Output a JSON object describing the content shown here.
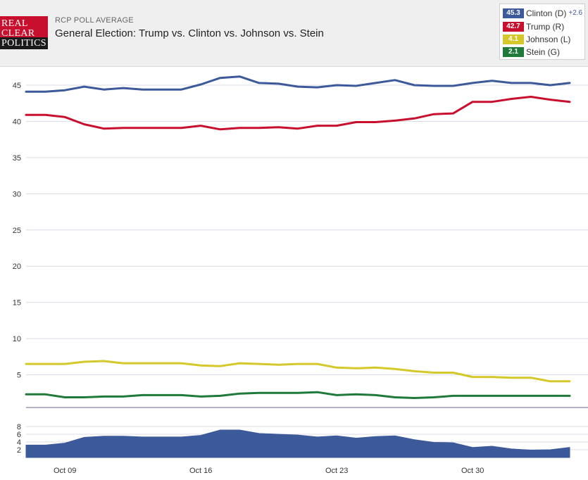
{
  "header": {
    "logo_lines": [
      "REAL",
      "CLEAR",
      "POLITICS"
    ],
    "subtitle": "RCP POLL AVERAGE",
    "title": "General Election: Trump vs. Clinton vs. Johnson vs. Stein"
  },
  "legend": [
    {
      "value": "45.3",
      "name": "Clinton (D)",
      "spread": "+2.6",
      "color": "#3c5a9a"
    },
    {
      "value": "42.7",
      "name": "Trump (R)",
      "spread": "",
      "color": "#c8102e"
    },
    {
      "value": "4.1",
      "name": "Johnson (L)",
      "spread": "",
      "color": "#d4c82a"
    },
    {
      "value": "2.1",
      "name": "Stein (G)",
      "spread": "",
      "color": "#1f7a3a"
    }
  ],
  "chart_data": [
    {
      "type": "line",
      "ylim": [
        0,
        47
      ],
      "yticks": [
        5,
        10,
        15,
        20,
        25,
        30,
        35,
        40,
        45
      ],
      "grid": true,
      "series": [
        {
          "name": "Clinton (D)",
          "color": "#3c5a9a",
          "values": [
            44.1,
            44.1,
            44.3,
            44.8,
            44.4,
            44.6,
            44.4,
            44.4,
            44.4,
            45.1,
            46.0,
            46.2,
            45.3,
            45.2,
            44.8,
            44.7,
            45.0,
            44.9,
            45.3,
            45.7,
            45.0,
            44.9,
            44.9,
            45.3,
            45.6,
            45.3,
            45.3,
            45.0,
            45.3
          ]
        },
        {
          "name": "Trump (R)",
          "color": "#c8102e",
          "values": [
            40.9,
            40.9,
            40.6,
            39.6,
            39.0,
            39.1,
            39.1,
            39.1,
            39.1,
            39.4,
            38.9,
            39.1,
            39.1,
            39.2,
            39.0,
            39.4,
            39.4,
            39.9,
            39.9,
            40.1,
            40.4,
            41.0,
            41.1,
            42.7,
            42.7,
            43.1,
            43.4,
            43.0,
            42.7
          ]
        },
        {
          "name": "Johnson (L)",
          "color": "#d4c82a",
          "values": [
            6.5,
            6.5,
            6.5,
            6.8,
            6.9,
            6.6,
            6.6,
            6.6,
            6.6,
            6.3,
            6.2,
            6.6,
            6.5,
            6.4,
            6.5,
            6.5,
            6.0,
            5.9,
            6.0,
            5.8,
            5.5,
            5.3,
            5.3,
            4.7,
            4.7,
            4.6,
            4.6,
            4.1,
            4.1
          ]
        },
        {
          "name": "Stein (G)",
          "color": "#1f7a3a",
          "values": [
            2.3,
            2.3,
            1.9,
            1.9,
            2.0,
            2.0,
            2.2,
            2.2,
            2.2,
            2.0,
            2.1,
            2.4,
            2.5,
            2.5,
            2.5,
            2.6,
            2.2,
            2.3,
            2.2,
            1.9,
            1.8,
            1.9,
            2.1,
            2.1,
            2.1,
            2.1,
            2.1,
            2.1,
            2.1
          ]
        }
      ]
    },
    {
      "type": "area",
      "ylim": [
        0,
        9
      ],
      "yticks": [
        2,
        4,
        6,
        8
      ],
      "grid": true,
      "series": [
        {
          "color": "#3c5a9a",
          "values": [
            3.2,
            3.2,
            3.7,
            5.2,
            5.5,
            5.5,
            5.3,
            5.3,
            5.3,
            5.7,
            7.1,
            7.1,
            6.2,
            6.0,
            5.8,
            5.3,
            5.6,
            5.0,
            5.4,
            5.6,
            4.6,
            3.9,
            3.8,
            2.6,
            2.9,
            2.2,
            1.9,
            2.0,
            2.6
          ]
        }
      ]
    }
  ],
  "x_axis": {
    "labels": [
      {
        "text": "Oct 09",
        "index": 2
      },
      {
        "text": "Oct 16",
        "index": 9
      },
      {
        "text": "Oct 23",
        "index": 16
      },
      {
        "text": "Oct 30",
        "index": 23
      }
    ]
  }
}
